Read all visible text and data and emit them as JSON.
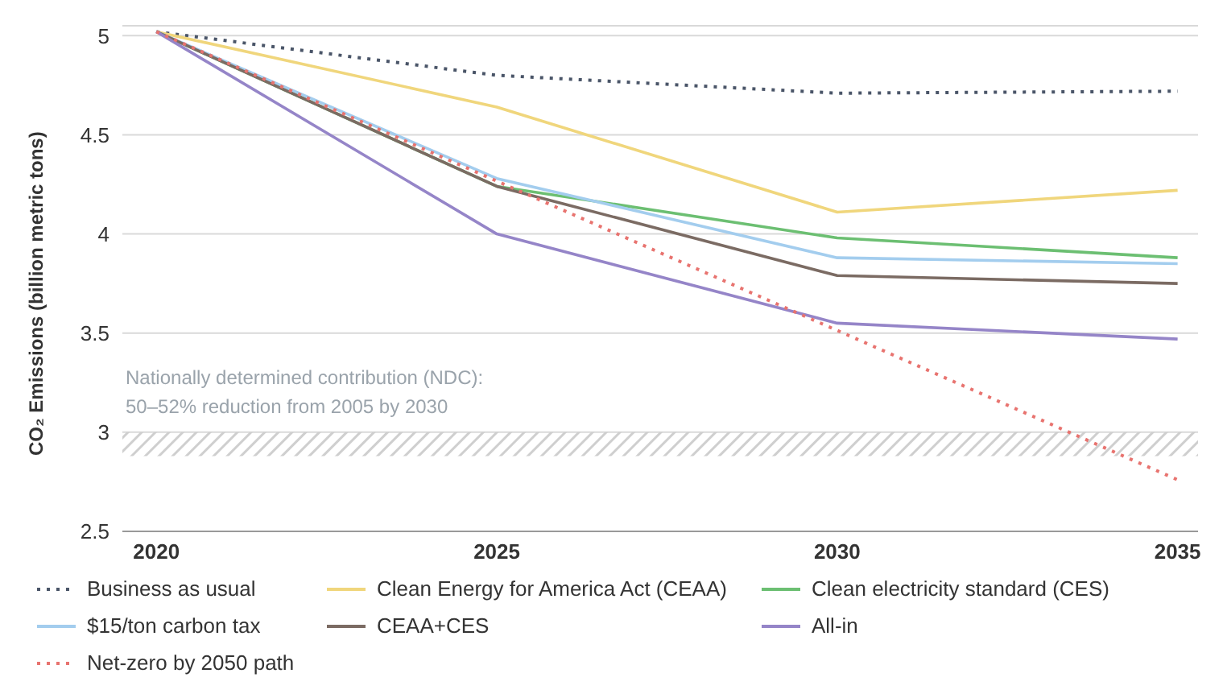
{
  "chart_data": {
    "type": "line",
    "ylabel": "CO₂ Emissions (billion metric tons)",
    "x": [
      2020,
      2025,
      2030,
      2035
    ],
    "xlim": [
      2019.5,
      2035.3
    ],
    "xticks": [
      2020,
      2025,
      2030,
      2035
    ],
    "ylim": [
      2.5,
      5.05
    ],
    "yticks": [
      2.5,
      3,
      3.5,
      4,
      4.5,
      5
    ],
    "grid": "y",
    "legend": "bottom",
    "marker": "none",
    "series": [
      {
        "name": "Business as usual",
        "color": "#4a5568",
        "line_style": "dotted",
        "values": [
          5.02,
          4.8,
          4.71,
          4.72
        ]
      },
      {
        "name": "Clean Energy for America Act (CEAA)",
        "color": "#f0d67c",
        "values": [
          5.02,
          4.64,
          4.11,
          4.22
        ]
      },
      {
        "name": "Clean electricity standard (CES)",
        "color": "#6cbf72",
        "values": [
          5.02,
          4.24,
          3.98,
          3.88
        ]
      },
      {
        "name": "$15/ton carbon tax",
        "color": "#a3cdee",
        "values": [
          5.02,
          4.28,
          3.88,
          3.85
        ]
      },
      {
        "name": "CEAA+CES",
        "color": "#7b6b63",
        "values": [
          5.02,
          4.24,
          3.79,
          3.75
        ]
      },
      {
        "name": "All-in",
        "color": "#9585c8",
        "values": [
          5.02,
          4.0,
          3.55,
          3.47
        ]
      },
      {
        "name": "Net-zero by 2050 path",
        "color": "#e8736f",
        "line_style": "dotted",
        "x": [
          2020,
          2035
        ],
        "values": [
          5.02,
          2.76
        ]
      }
    ],
    "bands": [
      {
        "axis": "y",
        "from": 2.88,
        "to": 3.0,
        "color": "#cfcfcf",
        "label": "Nationally determined contribution (NDC):\n50–52% reduction from 2005 by 2030"
      }
    ]
  }
}
